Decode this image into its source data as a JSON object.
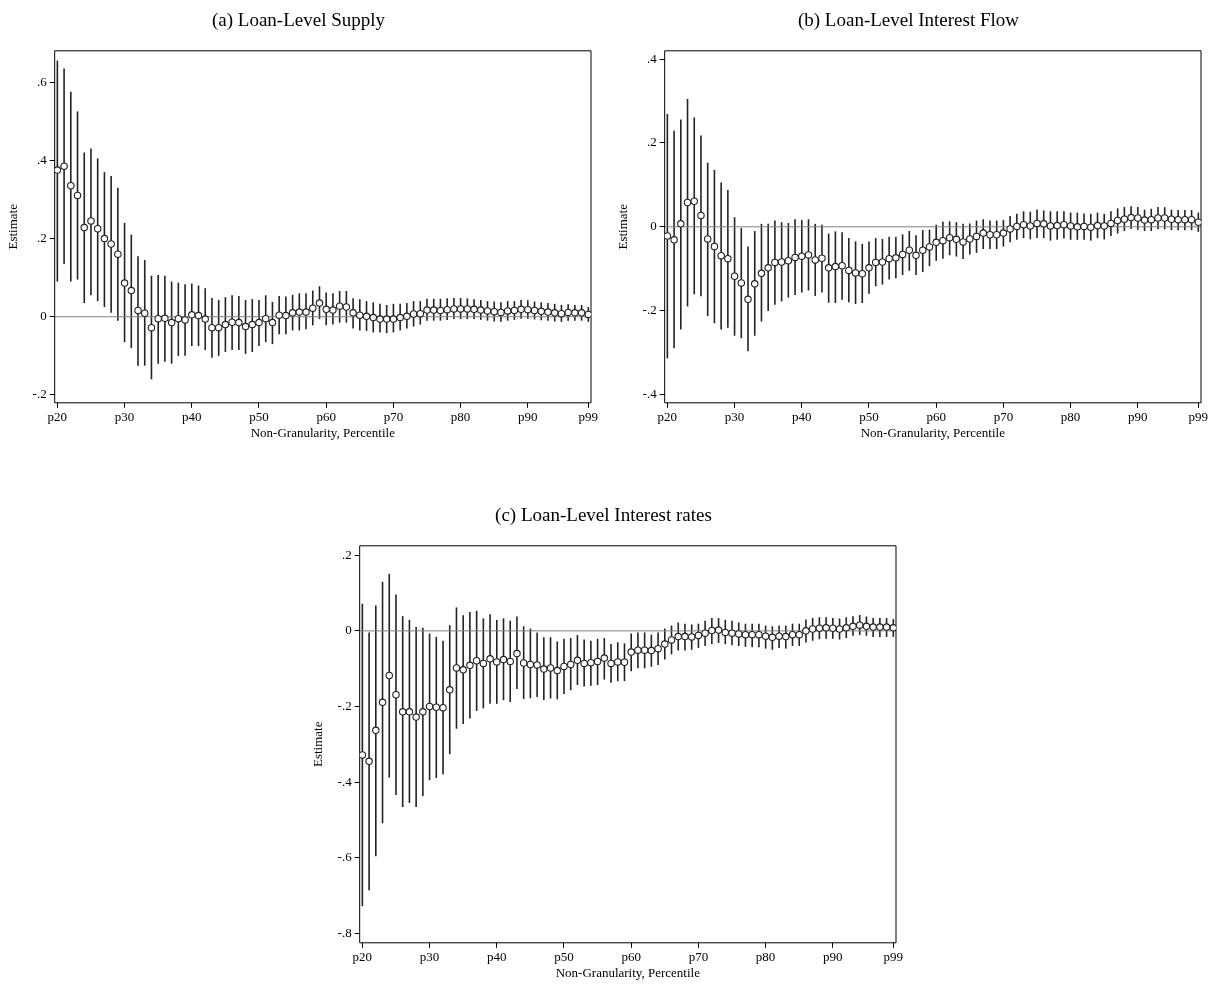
{
  "chart_data": [
    {
      "type": "scatter",
      "title": "(a) Loan-Level Supply",
      "xlabel": "Non-Granularity, Percentile",
      "ylabel": "Estimate",
      "color": "#222222",
      "marker": "circle",
      "grid": false,
      "legend": false,
      "categories": [
        "p20",
        null,
        null,
        null,
        null,
        null,
        null,
        null,
        null,
        null,
        "p30",
        null,
        null,
        null,
        null,
        null,
        null,
        null,
        null,
        null,
        "p40",
        null,
        null,
        null,
        null,
        null,
        null,
        null,
        null,
        null,
        "p50",
        null,
        null,
        null,
        null,
        null,
        null,
        null,
        null,
        null,
        "p60",
        null,
        null,
        null,
        null,
        null,
        null,
        null,
        null,
        null,
        "p70",
        null,
        null,
        null,
        null,
        null,
        null,
        null,
        null,
        null,
        "p80",
        null,
        null,
        null,
        null,
        null,
        null,
        null,
        null,
        null,
        "p90",
        null,
        null,
        null,
        null,
        null,
        null,
        null,
        null,
        "p99"
      ],
      "values": [
        0.375,
        0.385,
        0.335,
        0.31,
        0.228,
        0.245,
        0.225,
        0.2,
        0.186,
        0.16,
        0.086,
        0.067,
        0.016,
        0.009,
        -0.028,
        -0.005,
        -0.004,
        -0.015,
        -0.005,
        -0.008,
        0.005,
        0.003,
        -0.006,
        -0.028,
        -0.028,
        -0.02,
        -0.014,
        -0.015,
        -0.025,
        -0.02,
        -0.015,
        -0.005,
        -0.015,
        0.004,
        0.003,
        0.01,
        0.012,
        0.012,
        0.022,
        0.035,
        0.019,
        0.017,
        0.027,
        0.025,
        0.01,
        0.004,
        0.001,
        -0.002,
        -0.006,
        -0.006,
        -0.006,
        -0.002,
        0.001,
        0.007,
        0.008,
        0.017,
        0.017,
        0.016,
        0.018,
        0.02,
        0.02,
        0.02,
        0.019,
        0.017,
        0.015,
        0.013,
        0.011,
        0.015,
        0.016,
        0.019,
        0.018,
        0.016,
        0.014,
        0.012,
        0.01,
        0.008,
        0.011,
        0.01,
        0.01,
        0.006
      ],
      "errors": [
        [
          0.09,
          0.655
        ],
        [
          0.135,
          0.635
        ],
        [
          0.09,
          0.575
        ],
        [
          0.095,
          0.525
        ],
        [
          0.035,
          0.42
        ],
        [
          0.055,
          0.43
        ],
        [
          0.04,
          0.405
        ],
        [
          0.025,
          0.37
        ],
        [
          0.01,
          0.36
        ],
        [
          -0.01,
          0.33
        ],
        [
          -0.065,
          0.24
        ],
        [
          -0.08,
          0.21
        ],
        [
          -0.125,
          0.155
        ],
        [
          -0.125,
          0.145
        ],
        [
          -0.16,
          0.105
        ],
        [
          -0.12,
          0.107
        ],
        [
          -0.115,
          0.105
        ],
        [
          -0.12,
          0.09
        ],
        [
          -0.1,
          0.087
        ],
        [
          -0.1,
          0.083
        ],
        [
          -0.075,
          0.085
        ],
        [
          -0.075,
          0.08
        ],
        [
          -0.085,
          0.073
        ],
        [
          -0.105,
          0.048
        ],
        [
          -0.1,
          0.043
        ],
        [
          -0.09,
          0.05
        ],
        [
          -0.085,
          0.055
        ],
        [
          -0.085,
          0.053
        ],
        [
          -0.095,
          0.043
        ],
        [
          -0.09,
          0.045
        ],
        [
          -0.075,
          0.043
        ],
        [
          -0.065,
          0.055
        ],
        [
          -0.07,
          0.038
        ],
        [
          -0.045,
          0.053
        ],
        [
          -0.045,
          0.052
        ],
        [
          -0.035,
          0.056
        ],
        [
          -0.035,
          0.06
        ],
        [
          -0.032,
          0.06
        ],
        [
          -0.022,
          0.067
        ],
        [
          -0.006,
          0.078
        ],
        [
          -0.022,
          0.062
        ],
        [
          -0.02,
          0.06
        ],
        [
          -0.015,
          0.066
        ],
        [
          -0.015,
          0.066
        ],
        [
          -0.03,
          0.047
        ],
        [
          -0.035,
          0.045
        ],
        [
          -0.036,
          0.04
        ],
        [
          -0.04,
          0.037
        ],
        [
          -0.04,
          0.033
        ],
        [
          -0.042,
          0.03
        ],
        [
          -0.04,
          0.033
        ],
        [
          -0.035,
          0.033
        ],
        [
          -0.03,
          0.035
        ],
        [
          -0.025,
          0.04
        ],
        [
          -0.02,
          0.04
        ],
        [
          -0.01,
          0.046
        ],
        [
          -0.01,
          0.046
        ],
        [
          -0.01,
          0.046
        ],
        [
          -0.008,
          0.047
        ],
        [
          -0.006,
          0.048
        ],
        [
          -0.006,
          0.048
        ],
        [
          -0.006,
          0.047
        ],
        [
          -0.006,
          0.045
        ],
        [
          -0.008,
          0.043
        ],
        [
          -0.01,
          0.04
        ],
        [
          -0.012,
          0.039
        ],
        [
          -0.013,
          0.037
        ],
        [
          -0.01,
          0.04
        ],
        [
          -0.008,
          0.04
        ],
        [
          -0.005,
          0.043
        ],
        [
          -0.005,
          0.042
        ],
        [
          -0.007,
          0.039
        ],
        [
          -0.009,
          0.037
        ],
        [
          -0.01,
          0.035
        ],
        [
          -0.012,
          0.033
        ],
        [
          -0.013,
          0.03
        ],
        [
          -0.01,
          0.032
        ],
        [
          -0.01,
          0.03
        ],
        [
          -0.01,
          0.03
        ],
        [
          -0.013,
          0.025
        ]
      ],
      "ylim": [
        -0.22,
        0.68
      ],
      "yticks": [
        {
          "value": -0.2,
          "label": "-.2"
        },
        {
          "value": 0,
          "label": "0"
        },
        {
          "value": 0.2,
          "label": ".2"
        },
        {
          "value": 0.4,
          "label": ".4"
        },
        {
          "value": 0.6,
          "label": ".6"
        }
      ],
      "ref_lines": [
        {
          "axis": "y",
          "value": 0,
          "color": "#808080"
        }
      ]
    },
    {
      "type": "scatter",
      "title": "(b) Loan-Level Interest Flow",
      "xlabel": "Non-Granularity, Percentile",
      "ylabel": "Estimate",
      "color": "#222222",
      "marker": "circle",
      "grid": false,
      "legend": false,
      "categories": [
        "p20",
        null,
        null,
        null,
        null,
        null,
        null,
        null,
        null,
        null,
        "p30",
        null,
        null,
        null,
        null,
        null,
        null,
        null,
        null,
        null,
        "p40",
        null,
        null,
        null,
        null,
        null,
        null,
        null,
        null,
        null,
        "p50",
        null,
        null,
        null,
        null,
        null,
        null,
        null,
        null,
        null,
        "p60",
        null,
        null,
        null,
        null,
        null,
        null,
        null,
        null,
        null,
        "p70",
        null,
        null,
        null,
        null,
        null,
        null,
        null,
        null,
        null,
        "p80",
        null,
        null,
        null,
        null,
        null,
        null,
        null,
        null,
        null,
        "p90",
        null,
        null,
        null,
        null,
        null,
        null,
        null,
        null,
        "p99"
      ],
      "values": [
        -0.022,
        -0.031,
        0.007,
        0.058,
        0.061,
        0.027,
        -0.029,
        -0.047,
        -0.069,
        -0.076,
        -0.118,
        -0.134,
        -0.173,
        -0.136,
        -0.111,
        -0.098,
        -0.085,
        -0.084,
        -0.081,
        -0.073,
        -0.07,
        -0.067,
        -0.079,
        -0.075,
        -0.098,
        -0.095,
        -0.093,
        -0.104,
        -0.11,
        -0.112,
        -0.098,
        -0.085,
        -0.084,
        -0.076,
        -0.074,
        -0.066,
        -0.056,
        -0.068,
        -0.056,
        -0.048,
        -0.037,
        -0.033,
        -0.026,
        -0.03,
        -0.036,
        -0.029,
        -0.023,
        -0.015,
        -0.019,
        -0.019,
        -0.015,
        -0.005,
        0.001,
        0.005,
        0.002,
        0.008,
        0.007,
        0.002,
        0.003,
        0.005,
        0.002,
        0,
        0.001,
        -0.001,
        0.003,
        0.002,
        0.008,
        0.015,
        0.018,
        0.022,
        0.021,
        0.016,
        0.017,
        0.021,
        0.021,
        0.018,
        0.017,
        0.017,
        0.017,
        0.011
      ],
      "errors": [
        [
          -0.314,
          0.269
        ],
        [
          -0.29,
          0.229
        ],
        [
          -0.245,
          0.256
        ],
        [
          -0.19,
          0.305
        ],
        [
          -0.161,
          0.261
        ],
        [
          -0.166,
          0.218
        ],
        [
          -0.213,
          0.153
        ],
        [
          -0.23,
          0.136
        ],
        [
          -0.245,
          0.106
        ],
        [
          -0.241,
          0.088
        ],
        [
          -0.26,
          0.023
        ],
        [
          -0.266,
          -0.003
        ],
        [
          -0.297,
          -0.047
        ],
        [
          -0.26,
          -0.01
        ],
        [
          -0.226,
          0.007
        ],
        [
          -0.201,
          0.007
        ],
        [
          -0.186,
          0.015
        ],
        [
          -0.178,
          0.011
        ],
        [
          -0.169,
          0.009
        ],
        [
          -0.163,
          0.018
        ],
        [
          -0.157,
          0.016
        ],
        [
          -0.152,
          0.018
        ],
        [
          -0.165,
          0.007
        ],
        [
          -0.157,
          0.005
        ],
        [
          -0.181,
          -0.016
        ],
        [
          -0.182,
          -0.011
        ],
        [
          -0.174,
          -0.013
        ],
        [
          -0.18,
          -0.027
        ],
        [
          -0.184,
          -0.035
        ],
        [
          -0.182,
          -0.041
        ],
        [
          -0.16,
          -0.035
        ],
        [
          -0.142,
          -0.027
        ],
        [
          -0.138,
          -0.029
        ],
        [
          -0.126,
          -0.024
        ],
        [
          -0.123,
          -0.024
        ],
        [
          -0.115,
          -0.018
        ],
        [
          -0.105,
          -0.01
        ],
        [
          -0.115,
          -0.02
        ],
        [
          -0.108,
          -0.008
        ],
        [
          -0.094,
          -0.007
        ],
        [
          -0.081,
          0.005
        ],
        [
          -0.076,
          0.012
        ],
        [
          -0.068,
          0.013
        ],
        [
          -0.071,
          0.011
        ],
        [
          -0.077,
          0.007
        ],
        [
          -0.066,
          0.008
        ],
        [
          -0.062,
          0.015
        ],
        [
          -0.053,
          0.018
        ],
        [
          -0.053,
          0.015
        ],
        [
          -0.053,
          0.015
        ],
        [
          -0.047,
          0.016
        ],
        [
          -0.037,
          0.026
        ],
        [
          -0.031,
          0.031
        ],
        [
          -0.027,
          0.037
        ],
        [
          -0.03,
          0.036
        ],
        [
          -0.027,
          0.041
        ],
        [
          -0.027,
          0.039
        ],
        [
          -0.033,
          0.037
        ],
        [
          -0.031,
          0.037
        ],
        [
          -0.028,
          0.037
        ],
        [
          -0.031,
          0.034
        ],
        [
          -0.031,
          0.034
        ],
        [
          -0.031,
          0.032
        ],
        [
          -0.033,
          0.031
        ],
        [
          -0.027,
          0.034
        ],
        [
          -0.03,
          0.031
        ],
        [
          -0.022,
          0.037
        ],
        [
          -0.016,
          0.044
        ],
        [
          -0.01,
          0.047
        ],
        [
          -0.005,
          0.049
        ],
        [
          -0.007,
          0.047
        ],
        [
          -0.01,
          0.041
        ],
        [
          -0.01,
          0.043
        ],
        [
          -0.006,
          0.047
        ],
        [
          -0.006,
          0.047
        ],
        [
          -0.008,
          0.041
        ],
        [
          -0.008,
          0.04
        ],
        [
          -0.008,
          0.04
        ],
        [
          -0.008,
          0.04
        ],
        [
          -0.012,
          0.034
        ]
      ],
      "ylim": [
        -0.42,
        0.42
      ],
      "yticks": [
        {
          "value": -0.4,
          "label": "-.4"
        },
        {
          "value": -0.2,
          "label": "-.2"
        },
        {
          "value": 0,
          "label": "0"
        },
        {
          "value": 0.2,
          "label": ".2"
        },
        {
          "value": 0.4,
          "label": ".4"
        }
      ],
      "ref_lines": [
        {
          "axis": "y",
          "value": 0,
          "color": "#808080"
        }
      ]
    },
    {
      "type": "scatter",
      "title": "(c) Loan-Level Interest rates",
      "xlabel": "Non-Granularity, Percentile",
      "ylabel": "Estimate",
      "color": "#222222",
      "marker": "circle",
      "grid": false,
      "legend": false,
      "categories": [
        "p20",
        null,
        null,
        null,
        null,
        null,
        null,
        null,
        null,
        null,
        "p30",
        null,
        null,
        null,
        null,
        null,
        null,
        null,
        null,
        null,
        "p40",
        null,
        null,
        null,
        null,
        null,
        null,
        null,
        null,
        null,
        "p50",
        null,
        null,
        null,
        null,
        null,
        null,
        null,
        null,
        null,
        "p60",
        null,
        null,
        null,
        null,
        null,
        null,
        null,
        null,
        null,
        "p70",
        null,
        null,
        null,
        null,
        null,
        null,
        null,
        null,
        null,
        "p80",
        null,
        null,
        null,
        null,
        null,
        null,
        null,
        null,
        null,
        "p90",
        null,
        null,
        null,
        null,
        null,
        null,
        null,
        null,
        "p99"
      ],
      "values": [
        -0.328,
        -0.345,
        -0.263,
        -0.189,
        -0.118,
        -0.169,
        -0.214,
        -0.214,
        -0.228,
        -0.214,
        -0.2,
        -0.202,
        -0.203,
        -0.156,
        -0.098,
        -0.103,
        -0.091,
        -0.079,
        -0.086,
        -0.074,
        -0.082,
        -0.076,
        -0.081,
        -0.06,
        -0.085,
        -0.089,
        -0.09,
        -0.101,
        -0.098,
        -0.105,
        -0.094,
        -0.089,
        -0.078,
        -0.086,
        -0.084,
        -0.081,
        -0.072,
        -0.086,
        -0.082,
        -0.083,
        -0.056,
        -0.051,
        -0.051,
        -0.052,
        -0.047,
        -0.035,
        -0.024,
        -0.015,
        -0.015,
        -0.016,
        -0.012,
        -0.006,
        0.001,
        0.002,
        -0.004,
        -0.006,
        -0.008,
        -0.01,
        -0.01,
        -0.01,
        -0.014,
        -0.017,
        -0.014,
        -0.015,
        -0.01,
        -0.01,
        0,
        0.005,
        0.007,
        0.008,
        0.007,
        0.005,
        0.008,
        0.012,
        0.015,
        0.012,
        0.01,
        0.01,
        0.01,
        0.008
      ],
      "errors": [
        [
          -0.728,
          0.072
        ],
        [
          -0.686,
          -0.004
        ],
        [
          -0.596,
          0.067
        ],
        [
          -0.509,
          0.13
        ],
        [
          -0.388,
          0.151
        ],
        [
          -0.434,
          0.096
        ],
        [
          -0.466,
          0.039
        ],
        [
          -0.455,
          0.029
        ],
        [
          -0.466,
          0.01
        ],
        [
          -0.437,
          0.008
        ],
        [
          -0.395,
          -0.007
        ],
        [
          -0.389,
          -0.016
        ],
        [
          -0.379,
          -0.026
        ],
        [
          -0.326,
          0.015
        ],
        [
          -0.259,
          0.062
        ],
        [
          -0.246,
          0.041
        ],
        [
          -0.232,
          0.05
        ],
        [
          -0.212,
          0.053
        ],
        [
          -0.205,
          0.033
        ],
        [
          -0.193,
          0.044
        ],
        [
          -0.193,
          0.029
        ],
        [
          -0.183,
          0.033
        ],
        [
          -0.188,
          0.027
        ],
        [
          -0.154,
          0.038
        ],
        [
          -0.18,
          0.012
        ],
        [
          -0.178,
          0.006
        ],
        [
          -0.175,
          -0.004
        ],
        [
          -0.183,
          -0.017
        ],
        [
          -0.179,
          -0.017
        ],
        [
          -0.181,
          -0.028
        ],
        [
          -0.167,
          -0.021
        ],
        [
          -0.157,
          -0.019
        ],
        [
          -0.143,
          -0.011
        ],
        [
          -0.147,
          -0.023
        ],
        [
          -0.145,
          -0.026
        ],
        [
          -0.143,
          -0.021
        ],
        [
          -0.129,
          -0.019
        ],
        [
          -0.137,
          -0.035
        ],
        [
          -0.133,
          -0.03
        ],
        [
          -0.133,
          -0.033
        ],
        [
          -0.107,
          -0.007
        ],
        [
          -0.099,
          -0.004
        ],
        [
          -0.099,
          -0.004
        ],
        [
          -0.095,
          -0.01
        ],
        [
          -0.09,
          -0.004
        ],
        [
          -0.076,
          0.006
        ],
        [
          -0.062,
          0.014
        ],
        [
          -0.052,
          0.022
        ],
        [
          -0.052,
          0.019
        ],
        [
          -0.05,
          0.017
        ],
        [
          -0.045,
          0.019
        ],
        [
          -0.04,
          0.027
        ],
        [
          -0.035,
          0.034
        ],
        [
          -0.032,
          0.034
        ],
        [
          -0.035,
          0.029
        ],
        [
          -0.038,
          0.027
        ],
        [
          -0.04,
          0.022
        ],
        [
          -0.042,
          0.019
        ],
        [
          -0.043,
          0.019
        ],
        [
          -0.043,
          0.019
        ],
        [
          -0.047,
          0.014
        ],
        [
          -0.05,
          0.012
        ],
        [
          -0.045,
          0.014
        ],
        [
          -0.047,
          0.014
        ],
        [
          -0.04,
          0.019
        ],
        [
          -0.04,
          0.019
        ],
        [
          -0.031,
          0.03
        ],
        [
          -0.026,
          0.034
        ],
        [
          -0.022,
          0.036
        ],
        [
          -0.021,
          0.036
        ],
        [
          -0.021,
          0.034
        ],
        [
          -0.023,
          0.033
        ],
        [
          -0.019,
          0.036
        ],
        [
          -0.013,
          0.039
        ],
        [
          -0.011,
          0.042
        ],
        [
          -0.013,
          0.038
        ],
        [
          -0.016,
          0.034
        ],
        [
          -0.016,
          0.034
        ],
        [
          -0.016,
          0.034
        ],
        [
          -0.016,
          0.031
        ]
      ],
      "ylim": [
        -0.825,
        0.225
      ],
      "yticks": [
        {
          "value": -0.8,
          "label": "-.8"
        },
        {
          "value": -0.6,
          "label": "-.6"
        },
        {
          "value": -0.4,
          "label": "-.4"
        },
        {
          "value": -0.2,
          "label": "-.2"
        },
        {
          "value": 0,
          "label": "0"
        },
        {
          "value": 0.2,
          "label": ".2"
        }
      ],
      "ref_lines": [
        {
          "axis": "y",
          "value": 0,
          "color": "#808080"
        }
      ]
    }
  ]
}
